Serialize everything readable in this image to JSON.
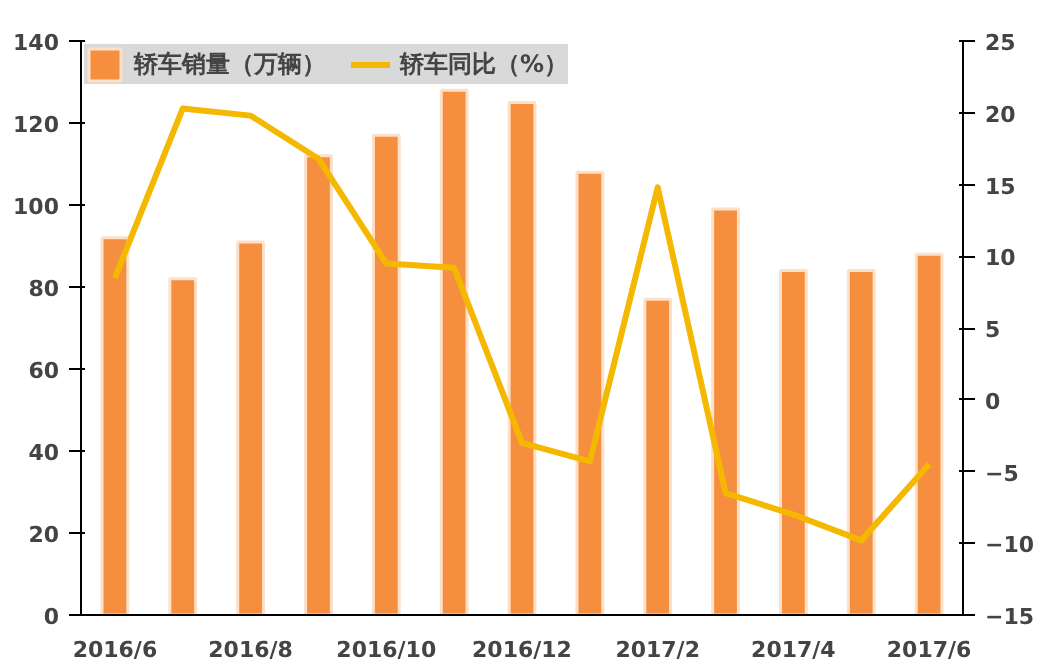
{
  "chart_data": {
    "type": "bar",
    "categories": [
      "2016/6",
      null,
      "2016/8",
      null,
      "2016/10",
      null,
      "2016/12",
      null,
      "2017/2",
      null,
      "2017/4",
      null,
      "2017/6"
    ],
    "series": [
      {
        "name": "轿车销量（万辆）",
        "color": "#f58f3f",
        "values": [
          92,
          82,
          91,
          112,
          117,
          128,
          125,
          108,
          77,
          99,
          84,
          84,
          88
        ]
      },
      {
        "name": "轿车同比（%）",
        "type": "line",
        "axis": "y2",
        "color": "#f5b800",
        "values": [
          8.5,
          20.3,
          19.8,
          16.8,
          9.5,
          9.2,
          -3,
          -4.3,
          14.8,
          -6.5,
          -8,
          -9.8,
          -4.5
        ]
      }
    ],
    "ylim": [
      0,
      140
    ],
    "yticks": [
      0,
      20,
      40,
      60,
      80,
      100,
      120,
      140
    ],
    "y2lim": [
      -15,
      25
    ],
    "y2ticks": [
      -15,
      -10,
      -5,
      0,
      5,
      10,
      15,
      20,
      25
    ],
    "legend": "top left",
    "grid": false,
    "line_style": "solid",
    "marker": "none"
  }
}
